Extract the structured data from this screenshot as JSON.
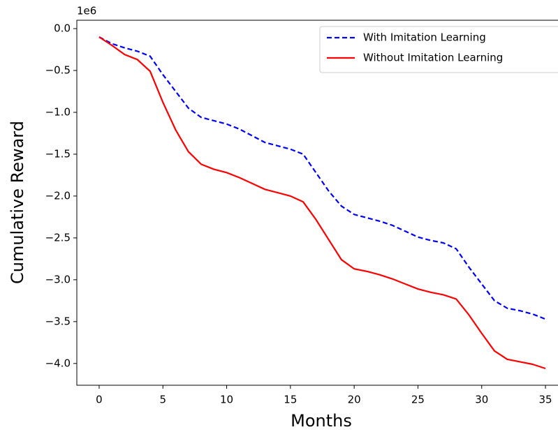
{
  "chart_data": {
    "type": "line",
    "xlabel": "Months",
    "ylabel": "Cumulative Reward",
    "offset_label": "1e6",
    "x": [
      0,
      1,
      2,
      3,
      4,
      5,
      6,
      7,
      8,
      9,
      10,
      11,
      12,
      13,
      14,
      15,
      16,
      17,
      18,
      19,
      20,
      21,
      22,
      23,
      24,
      25,
      26,
      27,
      28,
      29,
      30,
      31,
      32,
      33,
      34,
      35
    ],
    "series": [
      {
        "name": "With Imitation Learning",
        "color": "#0000ff",
        "linestyle": "dashed",
        "values": [
          -0.1,
          -0.18,
          -0.23,
          -0.27,
          -0.33,
          -0.55,
          -0.75,
          -0.95,
          -1.06,
          -1.1,
          -1.14,
          -1.2,
          -1.28,
          -1.36,
          -1.4,
          -1.44,
          -1.5,
          -1.72,
          -1.94,
          -2.12,
          -2.22,
          -2.26,
          -2.3,
          -2.35,
          -2.42,
          -2.49,
          -2.53,
          -2.56,
          -2.63,
          -2.85,
          -3.05,
          -3.25,
          -3.34,
          -3.37,
          -3.41,
          -3.47
        ]
      },
      {
        "name": "Without Imitation Learning",
        "color": "#ff0000",
        "linestyle": "solid",
        "values": [
          -0.1,
          -0.2,
          -0.31,
          -0.37,
          -0.51,
          -0.88,
          -1.21,
          -1.47,
          -1.62,
          -1.68,
          -1.72,
          -1.78,
          -1.85,
          -1.92,
          -1.96,
          -2.0,
          -2.07,
          -2.28,
          -2.52,
          -2.76,
          -2.87,
          -2.9,
          -2.94,
          -2.99,
          -3.05,
          -3.11,
          -3.15,
          -3.18,
          -3.23,
          -3.42,
          -3.64,
          -3.85,
          -3.95,
          -3.98,
          -4.01,
          -4.06
        ]
      }
    ],
    "xlim": [
      -1.75,
      36.75
    ],
    "ylim": [
      -4.26,
      0.1
    ],
    "xticks": [
      0,
      5,
      10,
      15,
      20,
      25,
      30,
      35
    ],
    "yticks": [
      {
        "value": 0,
        "label": "0.0"
      },
      {
        "value": -0.5,
        "label": "−0.5"
      },
      {
        "value": -1.0,
        "label": "−1.0"
      },
      {
        "value": -1.5,
        "label": "−1.5"
      },
      {
        "value": -2.0,
        "label": "−2.0"
      },
      {
        "value": -2.5,
        "label": "−2.5"
      },
      {
        "value": -3.0,
        "label": "−3.0"
      },
      {
        "value": -3.5,
        "label": "−3.5"
      },
      {
        "value": -4.0,
        "label": "−4.0"
      }
    ],
    "grid": false,
    "legend": "upper right"
  }
}
